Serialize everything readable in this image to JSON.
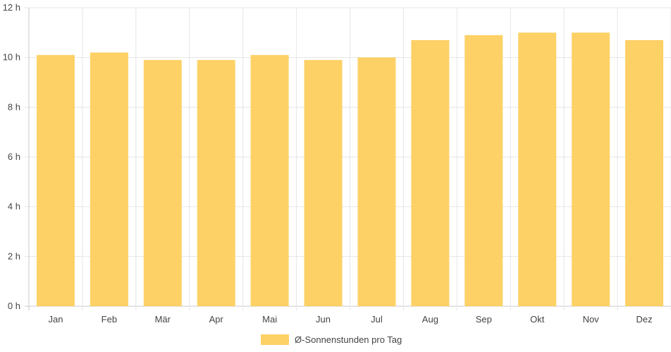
{
  "chart_data": {
    "type": "bar",
    "categories": [
      "Jan",
      "Feb",
      "Mär",
      "Apr",
      "Mai",
      "Jun",
      "Jul",
      "Aug",
      "Sep",
      "Okt",
      "Nov",
      "Dez"
    ],
    "series": [
      {
        "name": "Ø-Sonnenstunden pro Tag",
        "values": [
          10.1,
          10.2,
          9.9,
          9.9,
          10.1,
          9.9,
          10.0,
          10.7,
          10.9,
          11.0,
          11.0,
          10.7
        ],
        "color": "#fed166"
      }
    ],
    "y_ticks": [
      "0 h",
      "2 h",
      "4 h",
      "6 h",
      "8 h",
      "10 h",
      "12 h"
    ],
    "ylim": [
      0,
      12
    ],
    "grid": true,
    "legend_position": "bottom",
    "grid_color": "#e6e6e6",
    "axis_color": "#c8c8c8"
  }
}
